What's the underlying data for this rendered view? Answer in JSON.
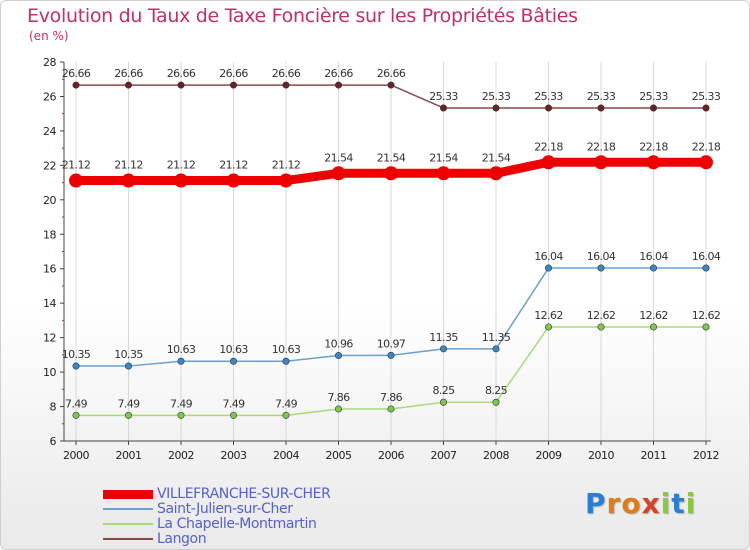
{
  "title": "Evolution du Taux de Taxe Foncière sur les Propriétés Bâties",
  "unit": "(en %)",
  "logo": {
    "text": "Proxiti",
    "letters": [
      "P",
      "r",
      "o",
      "x",
      "i",
      "t",
      "i"
    ],
    "colors": [
      "#2a7fd4",
      "#e07b1a",
      "#e07b1a",
      "#d6432a",
      "#8cc63f",
      "#2a7fd4",
      "#8cc63f"
    ]
  },
  "chart_data": {
    "type": "line",
    "categories": [
      "2000",
      "2001",
      "2002",
      "2003",
      "2004",
      "2005",
      "2006",
      "2007",
      "2008",
      "2009",
      "2010",
      "2011",
      "2012"
    ],
    "ylim": [
      6,
      28
    ],
    "yticks": [
      6,
      8,
      10,
      12,
      14,
      16,
      18,
      20,
      22,
      24,
      26,
      28
    ],
    "grid": "vertical",
    "legend_position": "bottom-left",
    "series": [
      {
        "name": "VILLEFRANCHE-SUR-CHER",
        "color": "#ee0000",
        "thick": true,
        "values": [
          21.12,
          21.12,
          21.12,
          21.12,
          21.12,
          21.54,
          21.54,
          21.54,
          21.54,
          22.18,
          22.18,
          22.18,
          22.18
        ],
        "labels": [
          "21.12",
          "21.12",
          "21.12",
          "21.12",
          "21.12",
          "21.54",
          "21.54",
          "21.54",
          "21.54",
          "22.18",
          "22.18",
          "22.18",
          "22.18"
        ]
      },
      {
        "name": "Saint-Julien-sur-Cher",
        "color": "#6aa0d0",
        "point_color": "#3a87c8",
        "thick": false,
        "values": [
          10.35,
          10.35,
          10.63,
          10.63,
          10.63,
          10.96,
          10.97,
          11.35,
          11.35,
          16.04,
          16.04,
          16.04,
          16.04
        ],
        "labels": [
          "10.35",
          "10.35",
          "10.63",
          "10.63",
          "10.63",
          "10.96",
          "10.97",
          "11.35",
          "11.35",
          "16.04",
          "16.04",
          "16.04",
          "16.04"
        ]
      },
      {
        "name": "La Chapelle-Montmartin",
        "color": "#a8da7a",
        "point_color": "#7cc84a",
        "thick": false,
        "values": [
          7.49,
          7.49,
          7.49,
          7.49,
          7.49,
          7.86,
          7.86,
          8.25,
          8.25,
          12.62,
          12.62,
          12.62,
          12.62
        ],
        "labels": [
          "7.49",
          "7.49",
          "7.49",
          "7.49",
          "7.49",
          "7.86",
          "7.86",
          "8.25",
          "8.25",
          "12.62",
          "12.62",
          "12.62",
          "12.62"
        ]
      },
      {
        "name": "Langon",
        "color": "#8a4a4a",
        "point_color": "#6a2222",
        "thick": false,
        "values": [
          26.66,
          26.66,
          26.66,
          26.66,
          26.66,
          26.66,
          26.66,
          25.33,
          25.33,
          25.33,
          25.33,
          25.33,
          25.33
        ],
        "labels": [
          "26.66",
          "26.66",
          "26.66",
          "26.66",
          "26.66",
          "26.66",
          "26.66",
          "25.33",
          "25.33",
          "25.33",
          "25.33",
          "25.33",
          "25.33"
        ]
      }
    ]
  }
}
